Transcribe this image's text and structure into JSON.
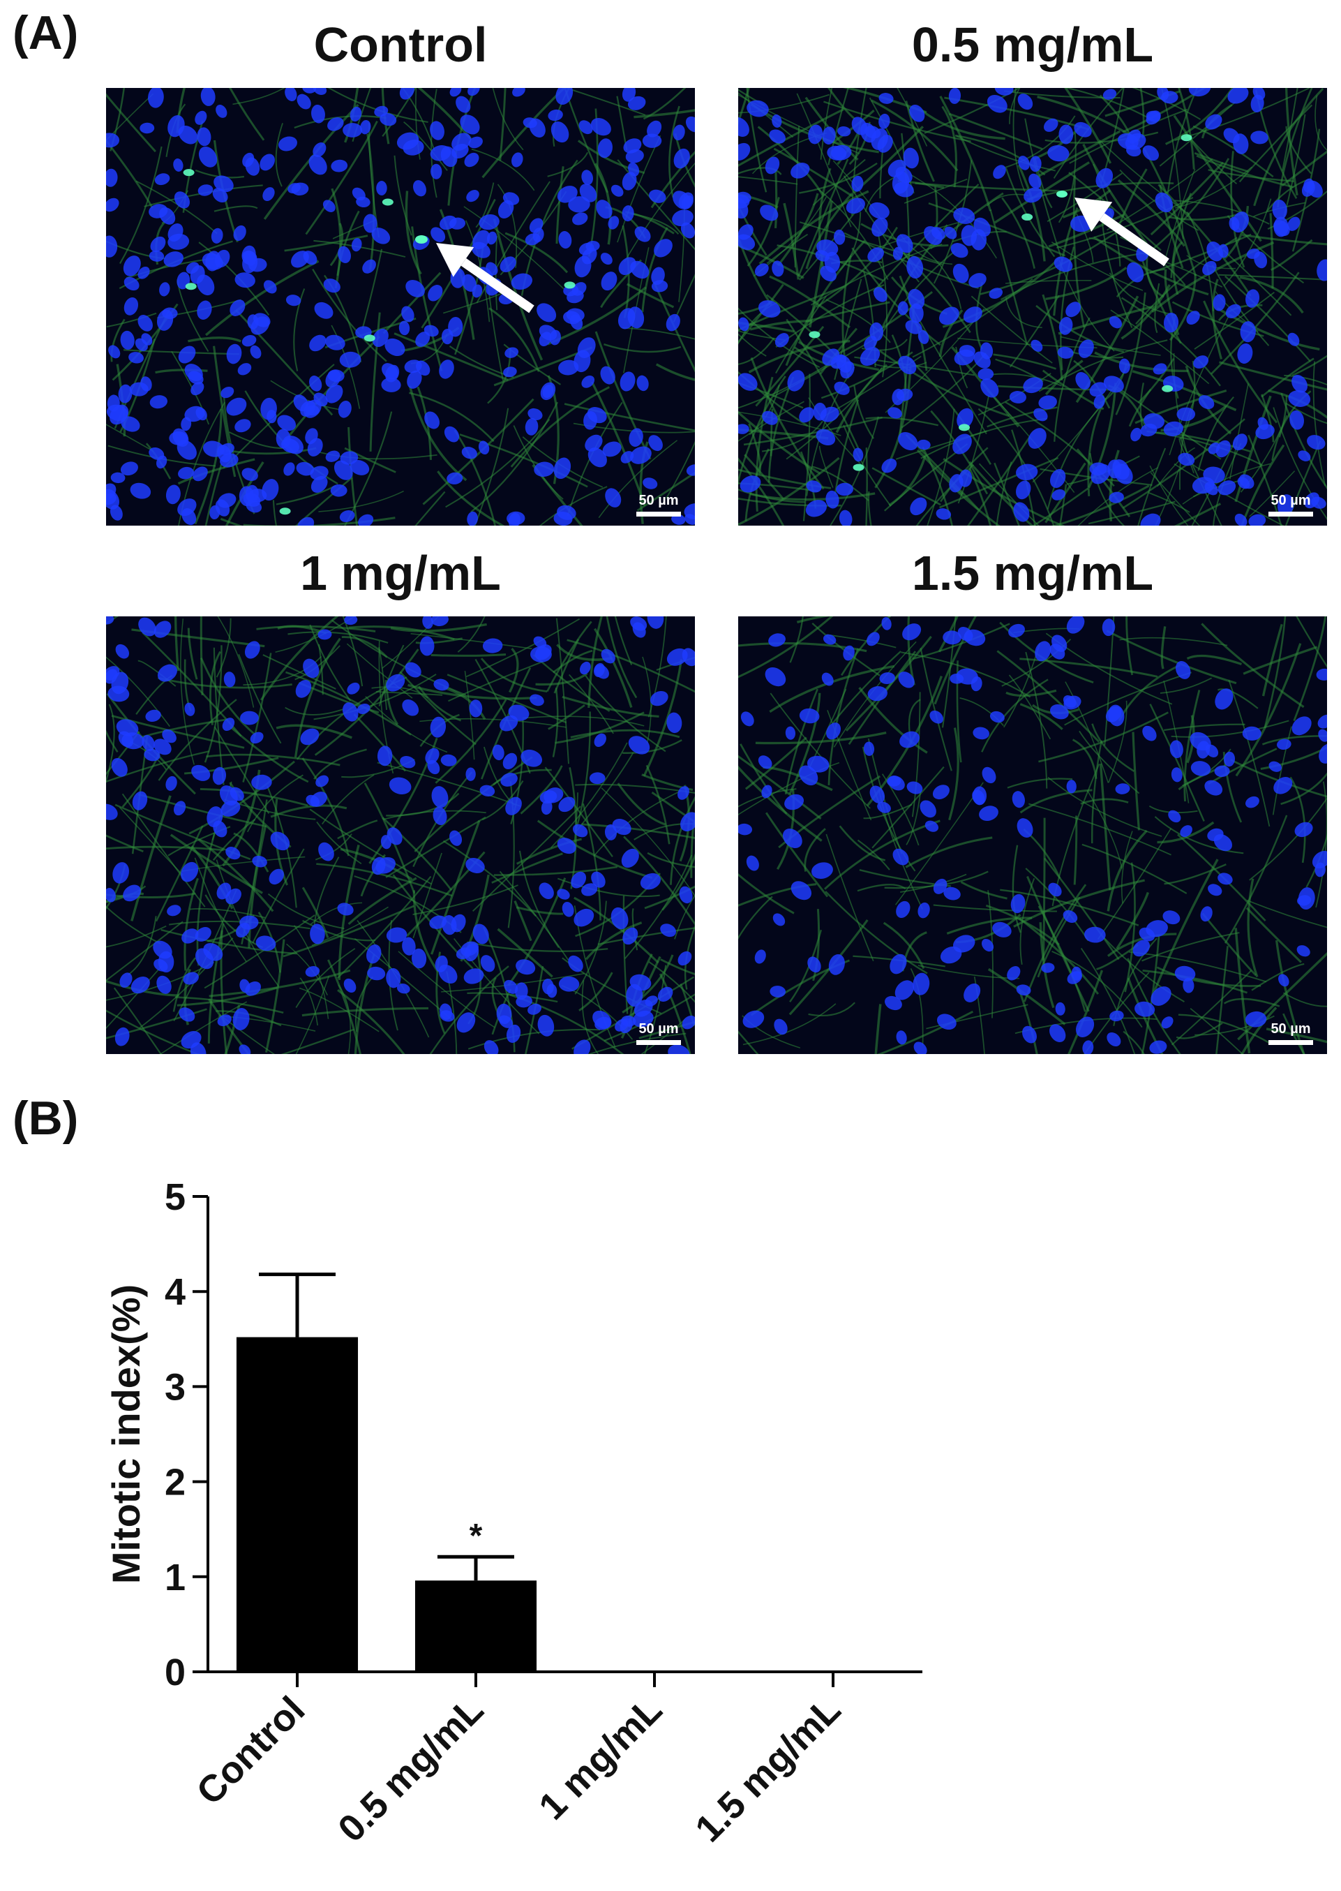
{
  "panel_a": {
    "label": "(A)",
    "images": [
      {
        "title": "Control",
        "scale_bar": "50 µm"
      },
      {
        "title": "0.5 mg/mL",
        "scale_bar": "50 µm"
      },
      {
        "title": "1 mg/mL",
        "scale_bar": "50 µm"
      },
      {
        "title": "1.5 mg/mL",
        "scale_bar": "50 µm"
      }
    ]
  },
  "panel_b": {
    "label": "(B)"
  },
  "chart_data": {
    "type": "bar",
    "ylabel": "Mitotic index(%)",
    "categories": [
      "Control",
      "0.5 mg/mL",
      "1 mg/mL",
      "1.5 mg/mL"
    ],
    "values": [
      3.52,
      0.96,
      0,
      0
    ],
    "errors": [
      0.66,
      0.25,
      0,
      0
    ],
    "significance": [
      null,
      "*",
      null,
      null
    ],
    "color": "#000000",
    "ylim": [
      0,
      5
    ],
    "yticks": [
      0,
      1,
      2,
      3,
      4,
      5
    ],
    "grid": false
  }
}
